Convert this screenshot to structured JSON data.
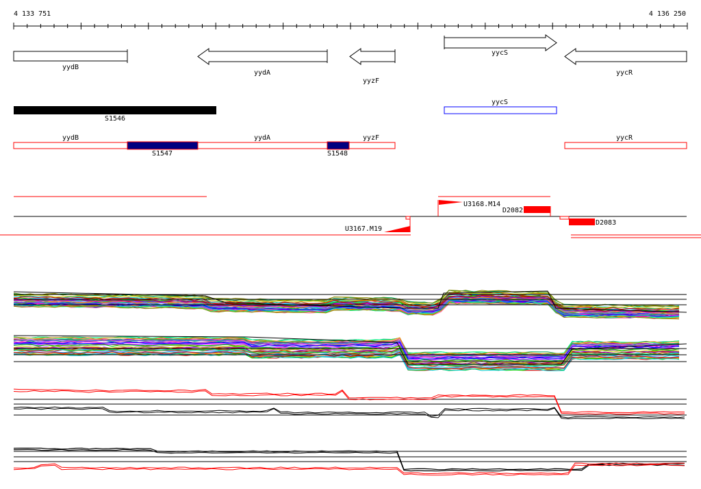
{
  "ruler": {
    "start_label": "4 133 751",
    "end_label": "4 136 250"
  },
  "genes": [
    {
      "name": "yydB",
      "label": "yydB"
    },
    {
      "name": "yydA",
      "label": "yydA"
    },
    {
      "name": "yyzF",
      "label": "yyzF"
    },
    {
      "name": "yycS",
      "label": "yycS"
    },
    {
      "name": "yycR",
      "label": "yycR"
    }
  ],
  "segments": {
    "s1546": "S1546",
    "s1547": "S1547",
    "s1548": "S1548",
    "yycS_box": "yycS",
    "row3_labels": {
      "yydB": "yydB",
      "yydA": "yydA",
      "yyzF": "yyzF",
      "yycR": "yycR"
    }
  },
  "features": {
    "u3168": "U3168.M14",
    "d2082": "D2082",
    "u3167": "U3167.M19",
    "d2083": "D2083"
  },
  "colors": {
    "red": "#ff0000",
    "dark_red": "#cc0000",
    "navy": "#000080",
    "blue": "#0000ff",
    "black": "#000000"
  }
}
